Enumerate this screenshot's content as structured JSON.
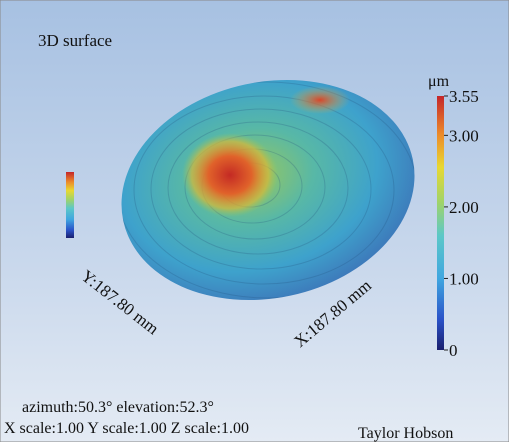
{
  "chart_data": {
    "type": "surface3d",
    "title": "3D surface",
    "colorbar_unit": "μm",
    "zlim": [
      0,
      3.55
    ],
    "zticks": [
      3.55,
      {
        "value": 3,
        "label": "3.00"
      },
      {
        "value": 2,
        "label": "2.00"
      },
      {
        "value": 1,
        "label": "1.00"
      },
      0
    ],
    "y_label": "Y:187.80 mm",
    "x_label": "X:187.80 mm",
    "view": "azimuth:50.3° elevation:52.3°",
    "scale": "X scale:1.00 Y scale:1.00 Z scale:1.00",
    "brand": "Taylor Hobson"
  }
}
